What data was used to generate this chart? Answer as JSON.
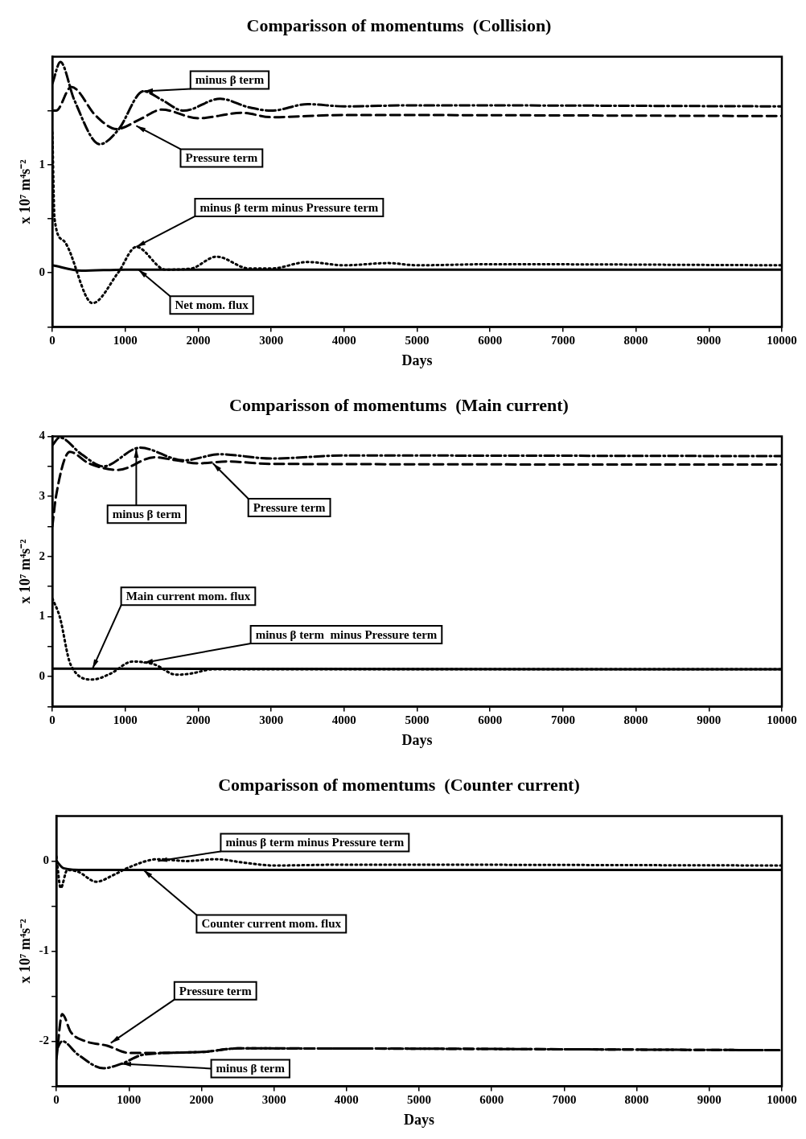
{
  "chart_data": [
    {
      "type": "line",
      "title": "Comparisson of momentums  (Collision)",
      "xlabel": "Days",
      "ylabel": "x 10⁷ m⁴s⁻²",
      "xlim": [
        0,
        10000
      ],
      "xticks": [
        0,
        1000,
        2000,
        3000,
        4000,
        5000,
        6000,
        7000,
        8000,
        9000,
        10000
      ],
      "ylim": [
        -0.5,
        2
      ],
      "yticks": [
        {
          "value": -0.5,
          "label": null
        },
        0,
        {
          "value": 0.5,
          "label": null
        },
        1,
        {
          "value": 1.5,
          "label": null
        }
      ],
      "grid": false,
      "legend": false,
      "marker": "none",
      "series": [
        {
          "color": "#000000",
          "line_style": "dashdot",
          "x": [
            0,
            110,
            300,
            650,
            900,
            1250,
            1500,
            1800,
            2300,
            2700,
            3000,
            3500,
            4000,
            5000,
            10000
          ],
          "values": [
            1.75,
            1.95,
            1.6,
            1.19,
            1.32,
            1.68,
            1.6,
            1.5,
            1.61,
            1.53,
            1.5,
            1.56,
            1.54,
            1.55,
            1.54
          ]
        },
        {
          "color": "#000000",
          "line_style": "dashed",
          "x": [
            0,
            50,
            260,
            600,
            880,
            1200,
            1500,
            2000,
            2600,
            3000,
            4000,
            10000
          ],
          "values": [
            1.5,
            1.5,
            1.72,
            1.45,
            1.33,
            1.42,
            1.51,
            1.43,
            1.48,
            1.44,
            1.46,
            1.45
          ]
        },
        {
          "color": "#000000",
          "line_style": "dotted",
          "x": [
            0,
            30,
            150,
            550,
            900,
            1150,
            1550,
            1900,
            2250,
            2700,
            3000,
            3500,
            4000,
            4600,
            5000,
            6000,
            10000
          ],
          "values": [
            1.3,
            0.5,
            0.3,
            -0.28,
            0.0,
            0.24,
            0.03,
            0.04,
            0.15,
            0.04,
            0.04,
            0.1,
            0.07,
            0.09,
            0.07,
            0.08,
            0.07
          ]
        },
        {
          "color": "#000000",
          "line_style": "solid",
          "x": [
            0,
            400,
            1000,
            10000
          ],
          "values": [
            0.07,
            0.02,
            0.03,
            0.03
          ]
        }
      ],
      "annotations": [
        {
          "text": "minus β term",
          "x": 1250,
          "y": 1.68
        },
        {
          "text": "Pressure term",
          "x": 1150,
          "y": 1.36
        },
        {
          "text": "minus β term minus Pressure term",
          "x": 1150,
          "y": 0.24
        },
        {
          "text": "Net mom. flux",
          "x": 1180,
          "y": 0.03
        }
      ]
    },
    {
      "type": "line",
      "title": "Comparisson of momentums  (Main current)",
      "xlabel": "Days",
      "ylabel": "x 10⁷ m⁴s⁻²",
      "xlim": [
        0,
        10000
      ],
      "xticks": [
        0,
        1000,
        2000,
        3000,
        4000,
        5000,
        6000,
        7000,
        8000,
        9000,
        10000
      ],
      "ylim": [
        -0.5,
        4
      ],
      "yticks": [
        {
          "value": -0.5,
          "label": null
        },
        0,
        {
          "value": 0.5,
          "label": null
        },
        1,
        {
          "value": 1.5,
          "label": null
        },
        2,
        {
          "value": 2.5,
          "label": null
        },
        3,
        {
          "value": 3.5,
          "label": null
        },
        4
      ],
      "grid": false,
      "legend": false,
      "marker": "none",
      "series": [
        {
          "color": "#000000",
          "line_style": "dashdot",
          "x": [
            0,
            100,
            400,
            700,
            1200,
            1800,
            2300,
            3000,
            4000,
            10000
          ],
          "values": [
            3.85,
            3.98,
            3.7,
            3.5,
            3.81,
            3.6,
            3.7,
            3.63,
            3.68,
            3.67
          ]
        },
        {
          "color": "#000000",
          "line_style": "dashed",
          "x": [
            0,
            50,
            240,
            500,
            900,
            1400,
            1700,
            2000,
            2400,
            3000,
            10000
          ],
          "values": [
            2.5,
            3.0,
            3.74,
            3.55,
            3.44,
            3.65,
            3.6,
            3.55,
            3.58,
            3.54,
            3.53
          ]
        },
        {
          "color": "#000000",
          "line_style": "dotted",
          "x": [
            0,
            100,
            250,
            550,
            800,
            1100,
            1400,
            1700,
            1900,
            2200,
            10000
          ],
          "values": [
            1.3,
            1.0,
            0.2,
            -0.05,
            0.05,
            0.25,
            0.2,
            0.03,
            0.05,
            0.12,
            0.12
          ]
        },
        {
          "color": "#000000",
          "line_style": "solid",
          "x": [
            0,
            10000
          ],
          "values": [
            0.13,
            0.12
          ]
        }
      ],
      "annotations": [
        {
          "text": "minus β term",
          "x": 1150,
          "y": 3.8
        },
        {
          "text": "Pressure term",
          "x": 2200,
          "y": 3.55
        },
        {
          "text": "Main current mom. flux",
          "x": 550,
          "y": 0.13
        },
        {
          "text": "minus β term  minus Pressure term",
          "x": 1250,
          "y": 0.23
        }
      ]
    },
    {
      "type": "line",
      "title": "Comparisson of momentums  (Counter current)",
      "xlabel": "Days",
      "ylabel": "x 10⁷ m⁴s⁻²",
      "xlim": [
        0,
        10000
      ],
      "xticks": [
        0,
        1000,
        2000,
        3000,
        4000,
        5000,
        6000,
        7000,
        8000,
        9000,
        10000
      ],
      "ylim": [
        -2.5,
        0.5
      ],
      "yticks": [
        {
          "value": -2.5,
          "label": null
        },
        -2,
        {
          "value": -1.5,
          "label": null
        },
        -1,
        {
          "value": -0.5,
          "label": null
        },
        0
      ],
      "grid": false,
      "legend": false,
      "marker": "none",
      "series": [
        {
          "color": "#000000",
          "line_style": "dotted",
          "x": [
            0,
            60,
            150,
            300,
            550,
            800,
            1000,
            1400,
            1800,
            2200,
            2600,
            3000,
            4000,
            10000
          ],
          "values": [
            0.05,
            -0.3,
            -0.1,
            -0.12,
            -0.23,
            -0.15,
            -0.07,
            0.02,
            0.0,
            0.02,
            -0.02,
            -0.05,
            -0.04,
            -0.05
          ]
        },
        {
          "color": "#000000",
          "line_style": "solid",
          "x": [
            0,
            100,
            400,
            10000
          ],
          "values": [
            0.0,
            -0.08,
            -0.1,
            -0.1
          ]
        },
        {
          "color": "#000000",
          "line_style": "dashed",
          "x": [
            0,
            80,
            200,
            400,
            700,
            1000,
            2000,
            2500,
            3000,
            10000
          ],
          "values": [
            -2.2,
            -1.7,
            -1.9,
            -2.0,
            -2.05,
            -2.13,
            -2.12,
            -2.08,
            -2.08,
            -2.1
          ]
        },
        {
          "color": "#000000",
          "line_style": "dashdot",
          "x": [
            0,
            80,
            300,
            650,
            900,
            1200,
            2000,
            2500,
            10000
          ],
          "values": [
            -2.1,
            -2.0,
            -2.15,
            -2.3,
            -2.25,
            -2.15,
            -2.12,
            -2.08,
            -2.1
          ]
        }
      ],
      "annotations": [
        {
          "text": "minus β term minus Pressure term",
          "x": 1400,
          "y": 0.0
        },
        {
          "text": "Counter current mom. flux",
          "x": 1200,
          "y": -0.1
        },
        {
          "text": "Pressure term",
          "x": 750,
          "y": -2.02
        },
        {
          "text": "minus β term",
          "x": 900,
          "y": -2.25
        }
      ]
    }
  ]
}
